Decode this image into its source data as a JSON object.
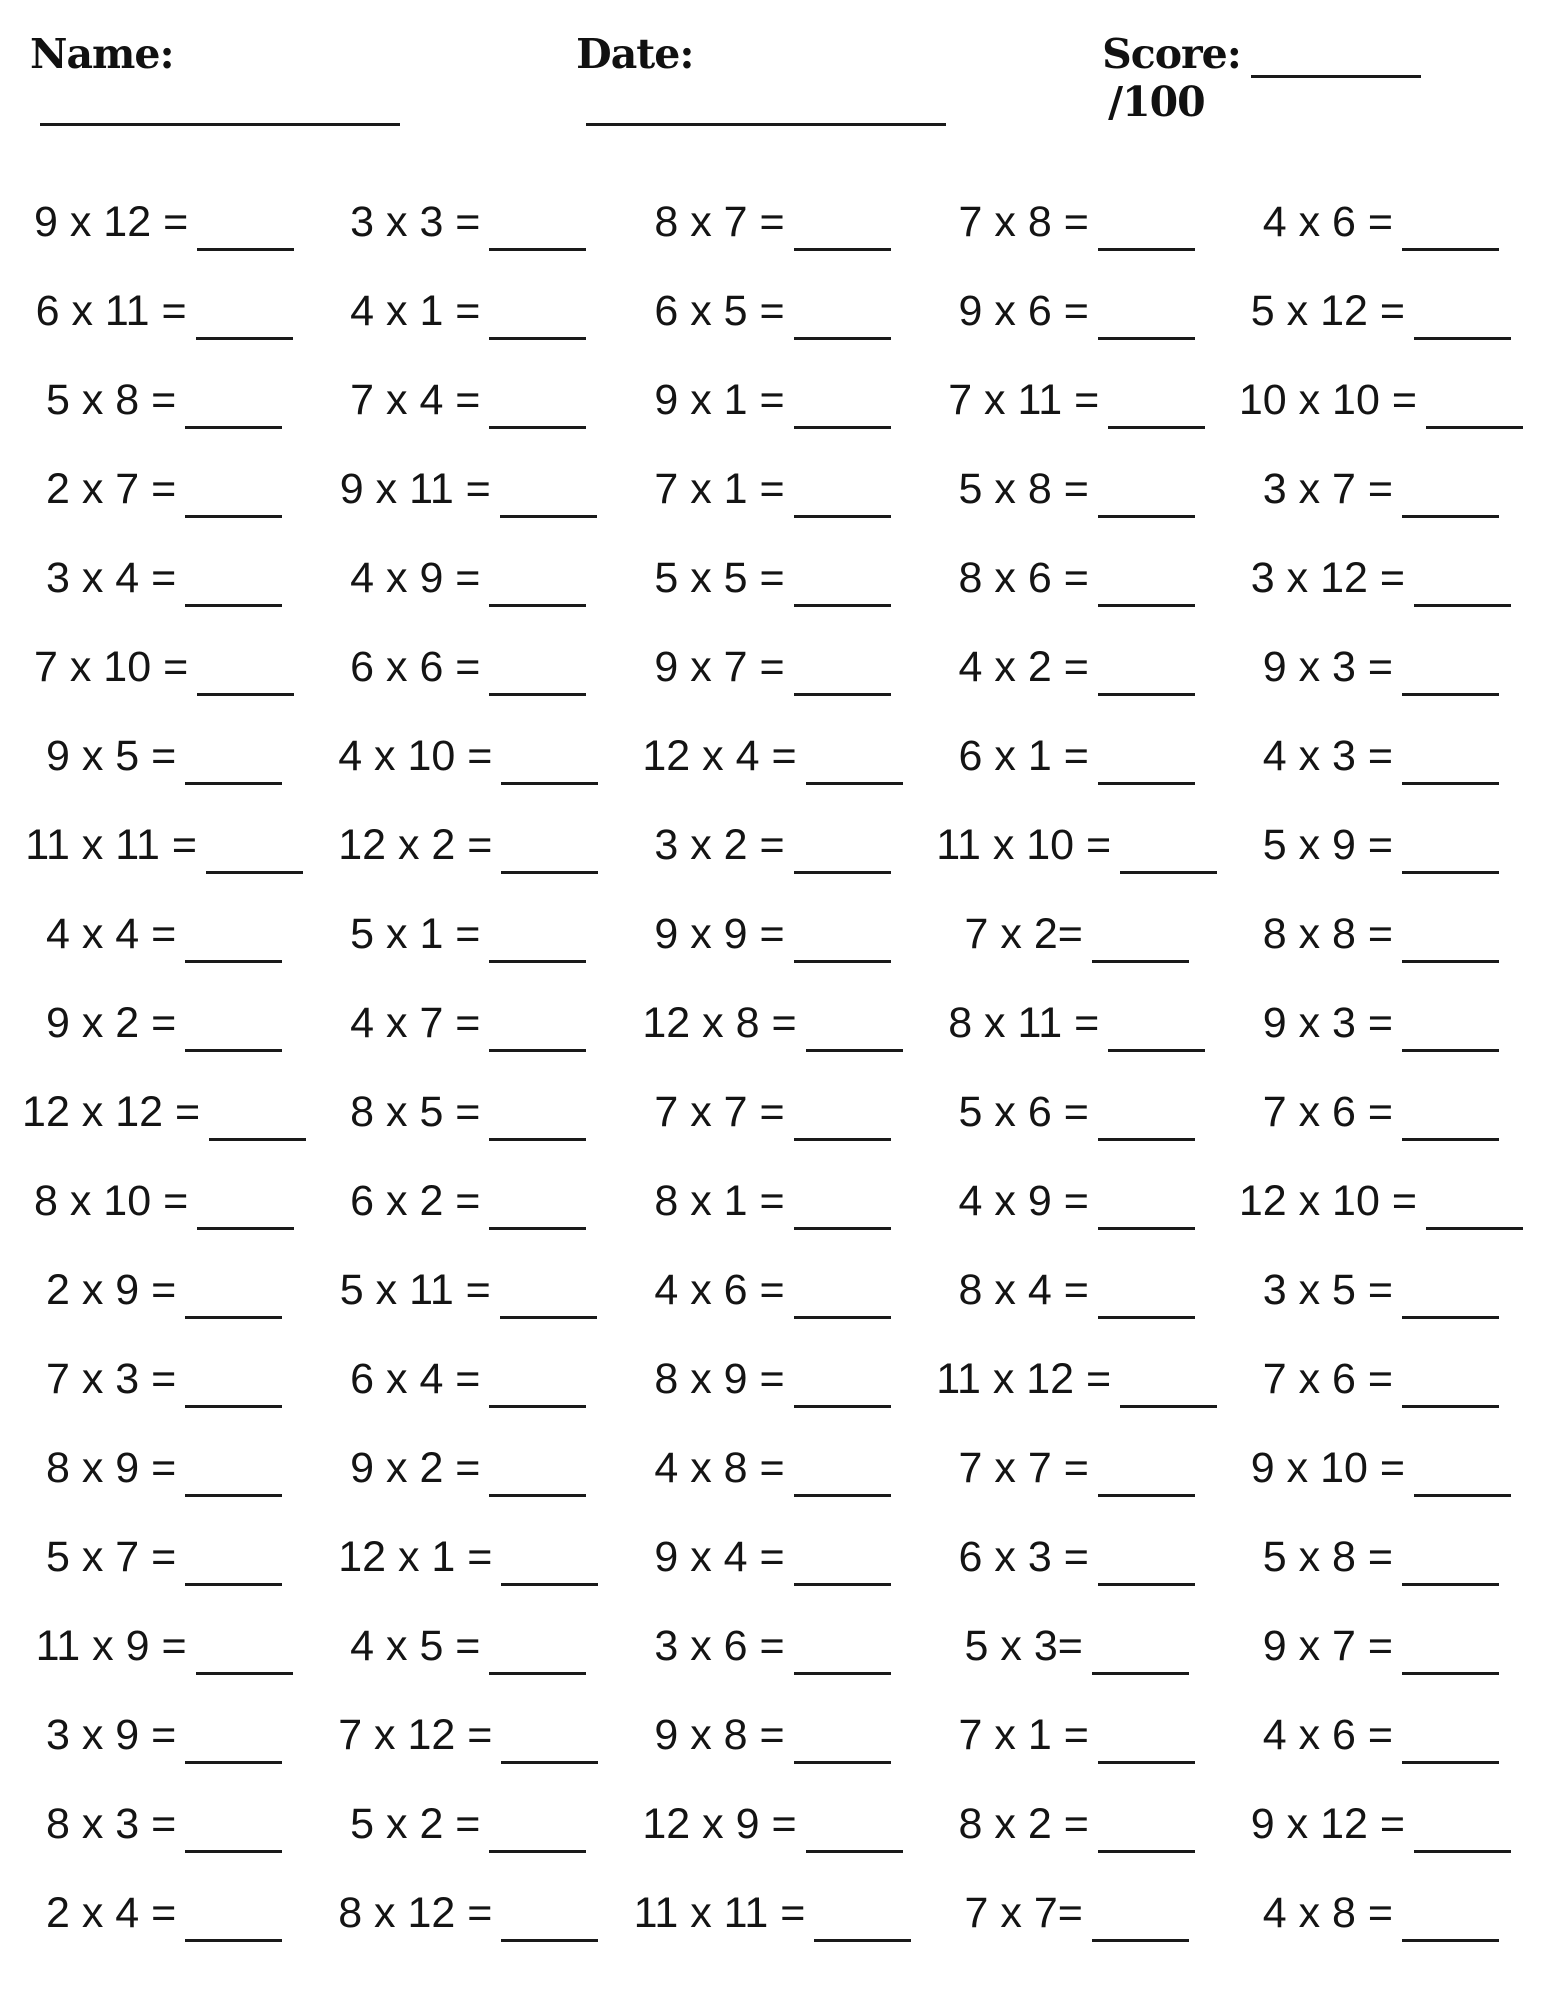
{
  "header": {
    "name_label": "Name:",
    "date_label": "Date:",
    "score_label": "Score:",
    "score_total": "/100"
  },
  "worksheet": {
    "type": "multiplication-practice",
    "columns": 5,
    "rows": 20,
    "total_problems": 100,
    "problems": [
      [
        "9 x 12 =",
        "3 x 3 =",
        "8 x 7 =",
        "7 x 8 =",
        "4 x 6 ="
      ],
      [
        "6 x 11 =",
        "4 x 1 =",
        "6 x 5 =",
        "9 x 6 =",
        "5 x 12 ="
      ],
      [
        "5 x 8 =",
        "7 x 4 =",
        "9 x 1 =",
        "7 x 11 =",
        "10 x 10 ="
      ],
      [
        "2 x 7 =",
        "9 x 11 =",
        "7 x 1 =",
        "5 x 8 =",
        "3 x 7 ="
      ],
      [
        "3 x 4 =",
        "4 x 9 =",
        "5 x 5 =",
        "8 x 6 =",
        "3 x 12 ="
      ],
      [
        "7 x 10 =",
        "6 x 6 =",
        "9 x 7 =",
        "4 x 2 =",
        "9 x 3 ="
      ],
      [
        "9 x 5 =",
        "4 x 10 =",
        "12 x 4 =",
        "6 x 1 =",
        "4 x 3 ="
      ],
      [
        "11 x 11 =",
        "12 x 2 =",
        "3 x 2 =",
        "11 x 10 =",
        "5 x 9 ="
      ],
      [
        "4 x 4 =",
        "5 x 1 =",
        "9 x 9 =",
        "7 x 2=",
        "8 x 8 ="
      ],
      [
        "9 x 2 =",
        "4 x 7 =",
        "12 x 8 =",
        "8 x 11 =",
        "9 x 3 ="
      ],
      [
        "12 x 12 =",
        "8 x 5 =",
        "7 x 7 =",
        "5 x 6 =",
        "7 x 6 ="
      ],
      [
        "8 x 10 =",
        "6 x 2 =",
        "8 x 1 =",
        "4 x 9 =",
        "12 x 10 ="
      ],
      [
        "2 x 9 =",
        "5 x 11 =",
        "4 x 6 =",
        "8 x 4 =",
        "3 x 5 ="
      ],
      [
        "7 x 3 =",
        "6 x 4 =",
        "8 x 9 =",
        "11 x 12 =",
        "7 x 6 ="
      ],
      [
        "8 x 9 =",
        "9 x 2 =",
        "4 x 8 =",
        "7 x 7 =",
        "9 x 10 ="
      ],
      [
        "5 x 7 =",
        "12 x 1 =",
        "9 x 4 =",
        "6 x 3 =",
        "5 x 8 ="
      ],
      [
        "11 x 9 =",
        "4 x 5 =",
        "3 x 6 =",
        "5 x 3=",
        "9 x 7 ="
      ],
      [
        "3 x 9 =",
        "7 x 12 =",
        "9 x 8 =",
        "7 x 1 =",
        "4 x 6 ="
      ],
      [
        "8 x 3 =",
        "5 x 2 =",
        "12 x 9 =",
        "8 x 2 =",
        "9 x 12 ="
      ],
      [
        "2 x 4 =",
        "8 x 12 =",
        "11 x 11 =",
        "7 x 7=",
        "4 x 8 ="
      ]
    ]
  }
}
